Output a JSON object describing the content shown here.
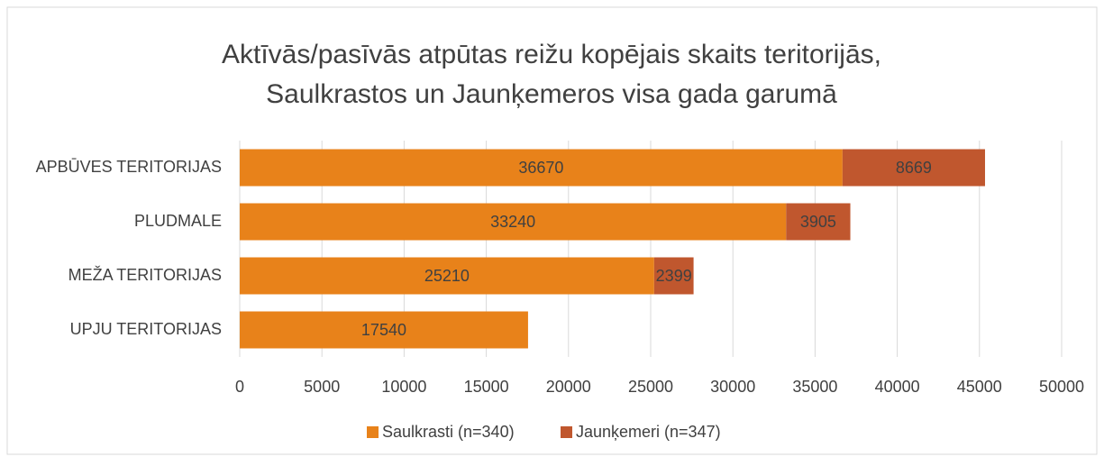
{
  "chart_data": {
    "type": "stacked-barh",
    "title": [
      "Aktīvās/pasīvās atpūtas reižu kopējais skaits teritorijās,",
      "Saulkrastos un Jaunķemeros visa gada garumā"
    ],
    "categories": [
      "APBŪVES TERITORIJAS",
      "PLUDMALE",
      "MEŽA TERITORIJAS",
      "UPJU TERITORIJAS"
    ],
    "series": [
      {
        "name": "Saulkrasti (n=340)",
        "color": "#e8821a",
        "values": [
          36670,
          33240,
          25210,
          17540
        ]
      },
      {
        "name": "Jaunķemeri (n=347)",
        "color": "#c0572e",
        "values": [
          8669,
          3905,
          2399,
          null
        ]
      }
    ],
    "xlim": [
      0,
      50000
    ],
    "xticks": [
      0,
      5000,
      10000,
      15000,
      20000,
      25000,
      30000,
      35000,
      40000,
      45000,
      50000
    ],
    "grid": true,
    "legend": "bottom"
  }
}
